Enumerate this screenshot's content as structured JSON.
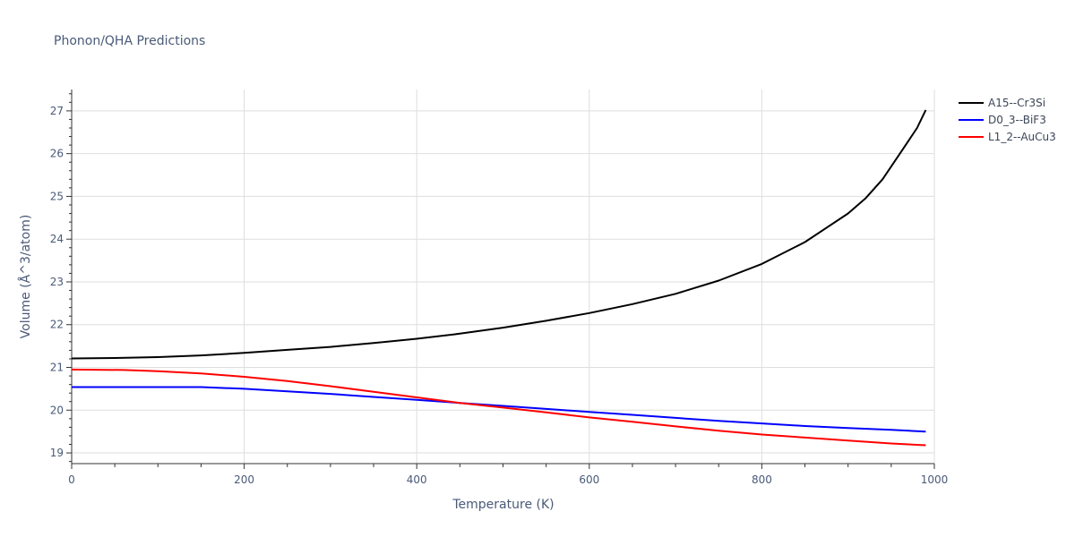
{
  "chart_data": {
    "type": "line",
    "title": "Phonon/QHA Predictions",
    "xlabel": "Temperature (K)",
    "ylabel": "Volume (Å^3/atom)",
    "xlim": [
      0,
      1000
    ],
    "ylim": [
      18.75,
      27.5
    ],
    "xticks": [
      0,
      200,
      400,
      600,
      800,
      1000
    ],
    "yticks": [
      19,
      20,
      21,
      22,
      23,
      24,
      25,
      26,
      27
    ],
    "grid": true,
    "legend_position": "top-right, outside plot",
    "series": [
      {
        "name": "A15--Cr3Si",
        "color": "#000000",
        "x": [
          0,
          50,
          100,
          150,
          200,
          250,
          300,
          350,
          400,
          450,
          500,
          550,
          600,
          650,
          700,
          750,
          800,
          850,
          900,
          920,
          940,
          960,
          980,
          990
        ],
        "y": [
          21.21,
          21.22,
          21.24,
          21.28,
          21.34,
          21.41,
          21.48,
          21.57,
          21.67,
          21.79,
          21.93,
          22.09,
          22.27,
          22.48,
          22.72,
          23.03,
          23.42,
          23.93,
          24.6,
          24.95,
          25.4,
          26.0,
          26.6,
          27.02
        ]
      },
      {
        "name": "D0_3--BiF3",
        "color": "#0000ff",
        "x": [
          0,
          50,
          100,
          150,
          200,
          250,
          300,
          350,
          400,
          450,
          500,
          550,
          600,
          650,
          700,
          750,
          800,
          850,
          900,
          950,
          990
        ],
        "y": [
          20.54,
          20.54,
          20.54,
          20.54,
          20.5,
          20.44,
          20.38,
          20.31,
          20.24,
          20.17,
          20.1,
          20.03,
          19.96,
          19.89,
          19.82,
          19.75,
          19.69,
          19.63,
          19.58,
          19.54,
          19.5
        ]
      },
      {
        "name": "L1_2--AuCu3",
        "color": "#ff0000",
        "x": [
          0,
          60,
          100,
          150,
          200,
          250,
          300,
          350,
          400,
          450,
          500,
          550,
          600,
          650,
          700,
          750,
          800,
          850,
          900,
          950,
          990
        ],
        "y": [
          20.95,
          20.94,
          20.91,
          20.86,
          20.78,
          20.68,
          20.56,
          20.43,
          20.3,
          20.17,
          20.06,
          19.95,
          19.83,
          19.73,
          19.62,
          19.52,
          19.43,
          19.36,
          19.29,
          19.22,
          19.18
        ]
      }
    ]
  }
}
